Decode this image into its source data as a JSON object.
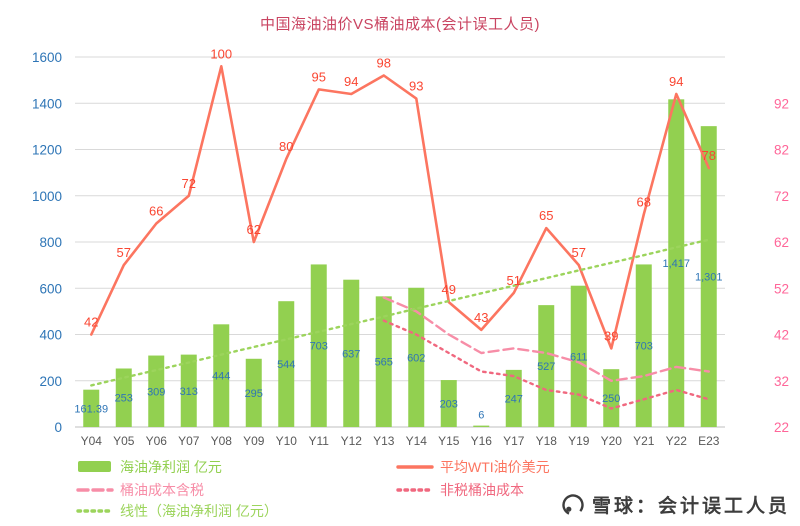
{
  "watermark": {
    "text": "雪球：会计误工人员"
  },
  "chart_data": {
    "type": "combo",
    "title": "中国海油油价VS桶油成本(会计误工人员)",
    "title_color": "#C94461",
    "categories": [
      "Y04",
      "Y05",
      "Y06",
      "Y07",
      "Y08",
      "Y09",
      "Y10",
      "Y11",
      "Y12",
      "Y13",
      "Y14",
      "Y15",
      "Y16",
      "Y17",
      "Y18",
      "Y19",
      "Y20",
      "Y21",
      "Y22",
      "E23"
    ],
    "category_color": "#595959",
    "grid_color": "#D9D9D9",
    "axis_line_color": "#BFBFBF",
    "left_axis": {
      "min": 0,
      "max": 1600,
      "ticks": [
        0,
        200,
        400,
        600,
        800,
        1000,
        1200,
        1400,
        1600
      ],
      "color": "#2E75B6"
    },
    "right_axis": {
      "min": 22,
      "max": 102,
      "ticks": [
        22,
        32,
        42,
        52,
        62,
        72,
        82,
        92
      ],
      "color": "#FF6699"
    },
    "legend_position": "bottom-left",
    "series": [
      {
        "name": "海油净利润 亿元",
        "type": "bar",
        "axis": "left",
        "color": "#92D050",
        "label_color": "#2E75B6",
        "values": [
          161.39,
          253,
          309,
          313,
          444,
          295,
          544,
          703,
          637,
          565,
          602,
          203,
          6,
          247,
          527,
          611,
          250,
          703,
          1417,
          1301
        ],
        "labels": [
          "161.39",
          "253",
          "309",
          "313",
          "444",
          "295",
          "544",
          "703",
          "637",
          "565",
          "602",
          "203",
          "6",
          "247",
          "527",
          "611",
          "250",
          "703",
          "1,417",
          "1,301"
        ]
      },
      {
        "name": "平均WTI油价美元",
        "type": "line",
        "dash": "solid",
        "axis": "right",
        "color": "#FC7560",
        "label_color": "#FA4632",
        "show_labels": true,
        "values": [
          42,
          57,
          66,
          72,
          100,
          62,
          80,
          95,
          94,
          98,
          93,
          49,
          43,
          51,
          65,
          57,
          39,
          68,
          94,
          78
        ]
      },
      {
        "name": "桶油成本含税",
        "type": "line",
        "dash": "dashed",
        "axis": "right",
        "color": "#F78DA7",
        "values": [
          null,
          null,
          null,
          null,
          null,
          null,
          null,
          null,
          null,
          50,
          47,
          42,
          38,
          39,
          38,
          36,
          32,
          33,
          35,
          34
        ]
      },
      {
        "name": "非税桶油成本",
        "type": "line",
        "dash": "dotted",
        "axis": "right",
        "color": "#F0687F",
        "values": [
          null,
          null,
          null,
          null,
          null,
          null,
          null,
          null,
          null,
          45,
          42,
          38,
          34,
          33,
          30,
          29,
          26,
          28,
          30,
          28
        ]
      },
      {
        "name": "线性（海油净利润 亿元）",
        "type": "line",
        "dash": "dotted",
        "axis": "left",
        "color": "#9CD45C",
        "values": [
          180,
          213,
          246,
          279,
          313,
          346,
          379,
          412,
          445,
          478,
          512,
          545,
          578,
          611,
          644,
          677,
          710,
          743,
          777,
          810
        ]
      }
    ]
  }
}
